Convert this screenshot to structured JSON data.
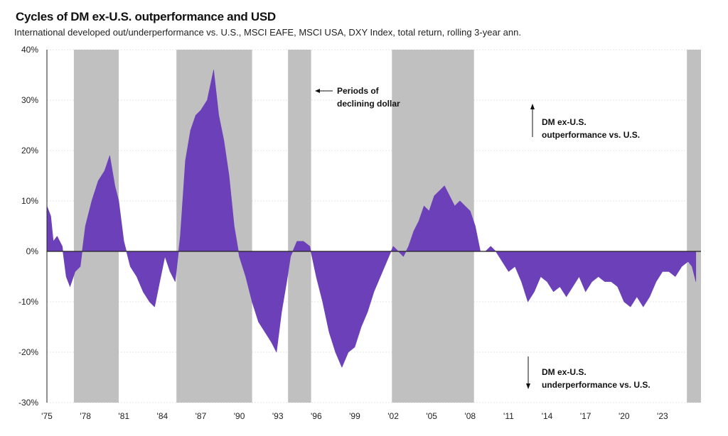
{
  "chart_data": {
    "type": "area",
    "title": "Cycles of DM ex-U.S. outperformance and USD",
    "subtitle": "International developed out/underperformance vs. U.S., MSCI EAFE, MSCI USA, DXY Index, total return, rolling 3-year ann.",
    "xlim": [
      1975,
      2026
    ],
    "ylim": [
      -30,
      40
    ],
    "y_ticks": [
      40,
      30,
      20,
      10,
      0,
      -10,
      -20,
      -30
    ],
    "y_tick_labels": [
      "40%",
      "30%",
      "20%",
      "10%",
      "0%",
      "-10%",
      "-20%",
      "-30%"
    ],
    "x_ticks": [
      1975,
      1978,
      1981,
      1984,
      1987,
      1990,
      1993,
      1996,
      1999,
      2002,
      2005,
      2008,
      2011,
      2014,
      2017,
      2020,
      2023
    ],
    "x_tick_labels": [
      "'75",
      "'78",
      "'81",
      "'84",
      "'87",
      "'90",
      "'93",
      "'96",
      "'99",
      "'02",
      "'05",
      "'08",
      "'11",
      "'14",
      "'17",
      "'20",
      "'23"
    ],
    "grid": true,
    "series_color": "#6b40b8",
    "shade_color": "#c0c0c0",
    "shaded_periods": [
      [
        1977.1,
        1980.6
      ],
      [
        1985.1,
        1991.0
      ],
      [
        1993.8,
        1995.6
      ],
      [
        2001.9,
        2008.3
      ],
      [
        2024.9,
        2026.0
      ]
    ],
    "x": [
      1975.0,
      1975.3,
      1975.5,
      1975.8,
      1976.2,
      1976.5,
      1976.8,
      1977.2,
      1977.6,
      1978.0,
      1978.5,
      1979.0,
      1979.5,
      1979.9,
      1980.3,
      1980.6,
      1981.0,
      1981.5,
      1982.0,
      1982.5,
      1983.0,
      1983.4,
      1983.8,
      1984.2,
      1984.6,
      1985.0,
      1985.4,
      1985.8,
      1986.2,
      1986.6,
      1987.0,
      1987.5,
      1988.0,
      1988.4,
      1988.8,
      1989.2,
      1989.6,
      1990.0,
      1990.5,
      1991.0,
      1991.5,
      1992.0,
      1992.5,
      1992.9,
      1993.3,
      1993.7,
      1994.0,
      1994.5,
      1995.0,
      1995.5,
      1996.0,
      1996.5,
      1997.0,
      1997.5,
      1998.0,
      1998.5,
      1999.0,
      1999.5,
      2000.0,
      2000.5,
      2001.0,
      2001.5,
      2002.0,
      2002.4,
      2002.8,
      2003.2,
      2003.6,
      2004.0,
      2004.4,
      2004.8,
      2005.2,
      2005.6,
      2006.0,
      2006.4,
      2006.8,
      2007.2,
      2007.6,
      2008.0,
      2008.4,
      2008.8,
      2009.2,
      2009.6,
      2010.0,
      2010.5,
      2011.0,
      2011.5,
      2012.0,
      2012.5,
      2013.0,
      2013.5,
      2014.0,
      2014.5,
      2015.0,
      2015.5,
      2016.0,
      2016.5,
      2017.0,
      2017.5,
      2018.0,
      2018.5,
      2019.0,
      2019.5,
      2020.0,
      2020.5,
      2021.0,
      2021.5,
      2022.0,
      2022.5,
      2023.0,
      2023.5,
      2024.0,
      2024.5,
      2025.0,
      2025.3,
      2025.6
    ],
    "values": [
      9,
      7,
      2,
      3,
      1,
      -5,
      -7,
      -4,
      -3,
      5,
      10,
      14,
      16,
      19,
      13,
      10,
      2,
      -3,
      -5,
      -8,
      -10,
      -11,
      -6,
      -1,
      -4,
      -6,
      3,
      18,
      24,
      27,
      28,
      30,
      36,
      27,
      22,
      15,
      5,
      -1,
      -5,
      -10,
      -14,
      -16,
      -18,
      -20,
      -12,
      -6,
      -1,
      2,
      2,
      1,
      -5,
      -10,
      -16,
      -20,
      -23,
      -20,
      -19,
      -15,
      -12,
      -8,
      -5,
      -2,
      1,
      0,
      -1,
      1,
      4,
      6,
      9,
      8,
      11,
      12,
      13,
      11,
      9,
      10,
      9,
      8,
      5,
      0,
      0,
      1,
      0,
      -2,
      -4,
      -3,
      -6,
      -10,
      -8,
      -5,
      -6,
      -8,
      -7,
      -9,
      -7,
      -5,
      -8,
      -6,
      -5,
      -6,
      -6,
      -7,
      -10,
      -11,
      -9,
      -11,
      -9,
      -6,
      -4,
      -4,
      -5,
      -3,
      -2,
      -3,
      -6
    ],
    "annotations": {
      "declining_dollar": [
        "Periods of",
        "declining dollar"
      ],
      "outperformance": [
        "DM ex-U.S.",
        "outperformance vs. U.S."
      ],
      "underperformance": [
        "DM ex-U.S.",
        "underperformance vs. U.S."
      ]
    }
  }
}
